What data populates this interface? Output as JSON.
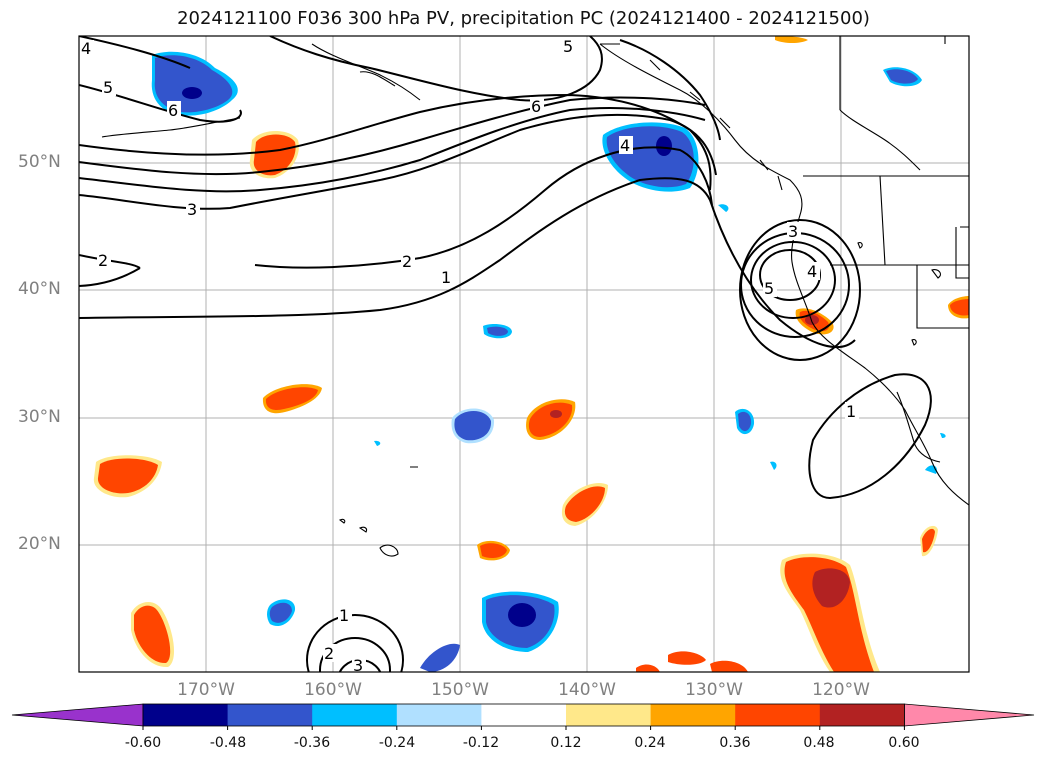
{
  "title": "2024121100 F036 300 hPa PV, precipitation PC (2024121400 - 2024121500)",
  "lat_labels": [
    "50°N",
    "40°N",
    "30°N",
    "20°N"
  ],
  "lon_labels": [
    "170°W",
    "160°W",
    "150°W",
    "140°W",
    "130°W",
    "120°W"
  ],
  "colorbar": {
    "ticks": [
      "-0.60",
      "-0.48",
      "-0.36",
      "-0.24",
      "-0.12",
      "0.12",
      "0.24",
      "0.36",
      "0.48",
      "0.60"
    ],
    "colors": [
      "#9932cc",
      "#00008b",
      "#3355cc",
      "#00bfff",
      "#b0e0ff",
      "#ffffff",
      "#ffe88a",
      "#ffa500",
      "#ff4500",
      "#b22222",
      "#ff88aa"
    ]
  },
  "pv_contour_labels": [
    "6",
    "5",
    "4",
    "3",
    "2",
    "1",
    "6",
    "5",
    "4",
    "2",
    "1",
    "5",
    "4",
    "3",
    "1",
    "1",
    "2",
    "3"
  ]
}
